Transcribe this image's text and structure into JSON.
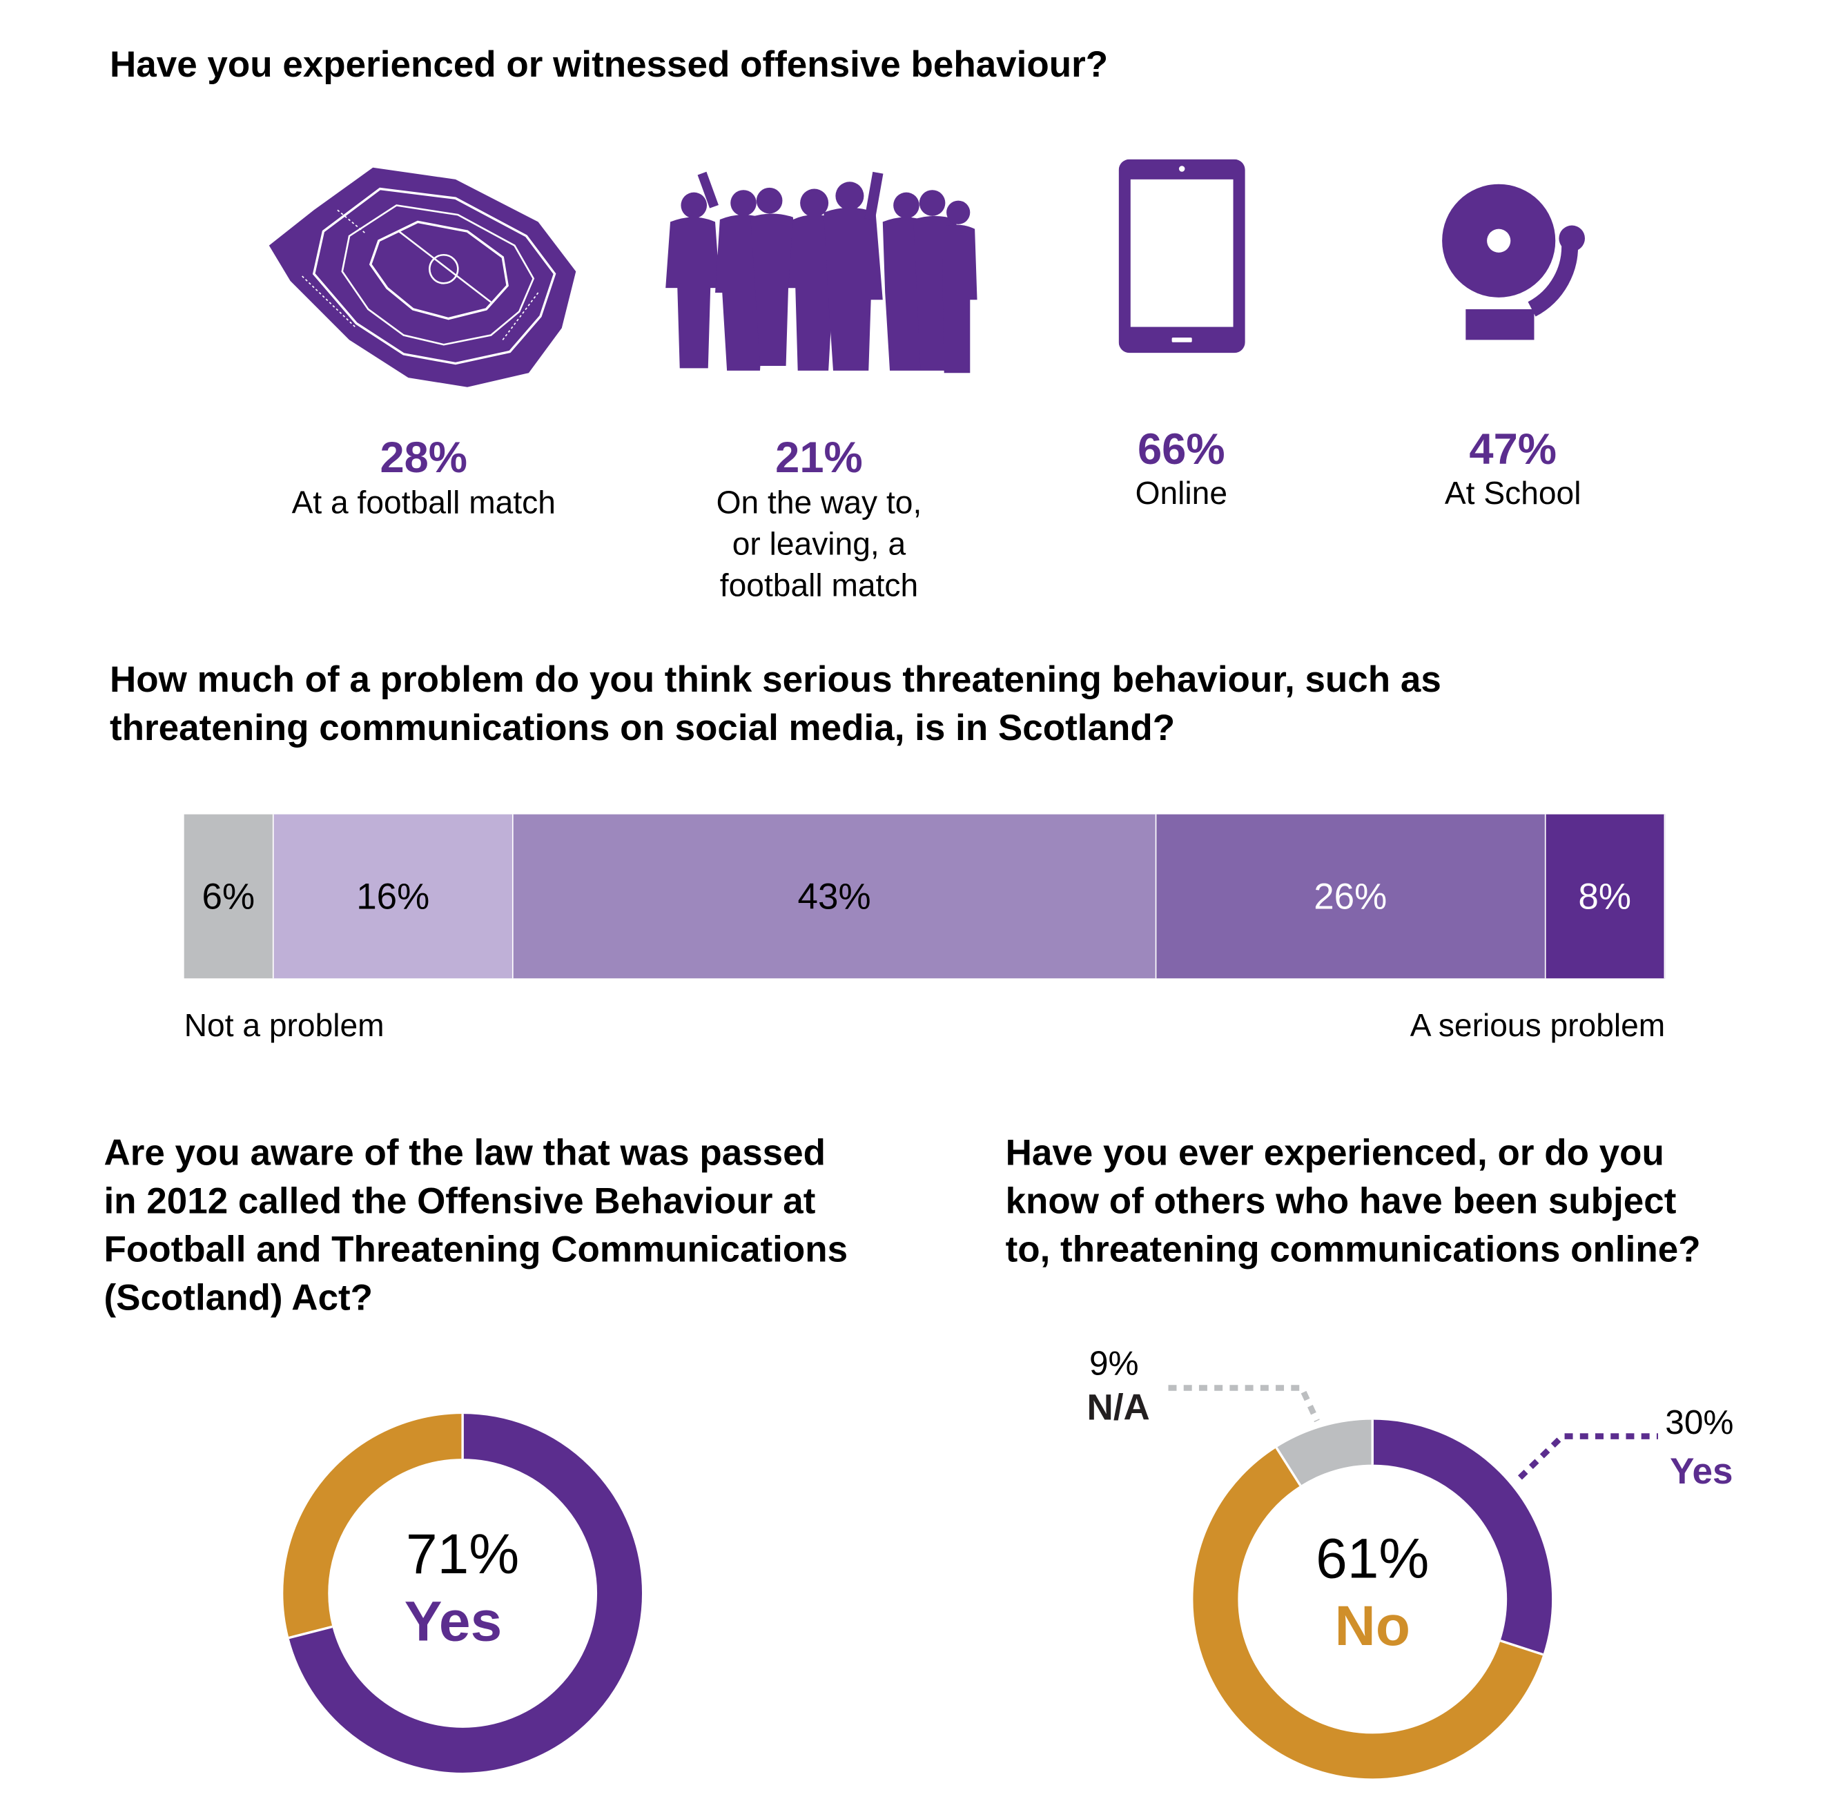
{
  "colors": {
    "purple": "#5b2d8e",
    "gold": "#d08f2a",
    "gray": "#bcbec0",
    "scale": [
      "#bcbec0",
      "#bfb0d7",
      "#9d88bd",
      "#8266aa",
      "#5b2d8e"
    ]
  },
  "section1": {
    "title": "Have you experienced or witnessed offensive behaviour?",
    "items": [
      {
        "icon": "stadium-icon",
        "value": "28%",
        "label_lines": [
          "At a football match"
        ]
      },
      {
        "icon": "crowd-icon",
        "value": "21%",
        "label_lines": [
          "On the way to,",
          "or leaving, a",
          "football match"
        ]
      },
      {
        "icon": "tablet-icon",
        "value": "66%",
        "label_lines": [
          "Online"
        ]
      },
      {
        "icon": "school-bell-icon",
        "value": "47%",
        "label_lines": [
          "At School"
        ]
      }
    ]
  },
  "section2": {
    "title_lines": [
      "How much of a problem do you think serious threatening behaviour, such as",
      "threatening communications on social media, is in Scotland?"
    ]
  },
  "section3": {
    "title_lines": [
      "Are you aware of the law that was passed",
      "in 2012 called the Offensive Behaviour at",
      "Football and Threatening Communications",
      "(Scotland) Act?"
    ]
  },
  "section4": {
    "title_lines": [
      "Have you ever experienced, or do you",
      "know of others who have been subject",
      "to, threatening communications online?"
    ]
  },
  "chart_data": [
    {
      "type": "bar",
      "stacked": true,
      "orientation": "horizontal",
      "values": [
        6,
        16,
        43,
        26,
        8
      ],
      "data_labels": [
        "6%",
        "16%",
        "43%",
        "26%",
        "8%"
      ],
      "colors": [
        "#bcbec0",
        "#bfb0d7",
        "#9d88bd",
        "#8266aa",
        "#5b2d8e"
      ],
      "label_colors": [
        "#000000",
        "#000000",
        "#000000",
        "#ffffff",
        "#ffffff"
      ],
      "scale_left_label": "Not a problem",
      "scale_right_label": "A serious problem"
    },
    {
      "type": "pie",
      "donut": true,
      "slices": [
        {
          "label": "Yes",
          "value": 71,
          "color": "#5b2d8e"
        },
        {
          "label": "No",
          "value": 29,
          "color": "#d08f2a"
        }
      ],
      "center_value": "71%",
      "center_label": "Yes"
    },
    {
      "type": "pie",
      "donut": true,
      "slices": [
        {
          "label": "Yes",
          "value": 30,
          "color": "#5b2d8e"
        },
        {
          "label": "No",
          "value": 61,
          "color": "#d08f2a"
        },
        {
          "label": "N/A",
          "value": 9,
          "color": "#bcbec0"
        }
      ],
      "center_value": "61%",
      "center_label": "No",
      "callouts": [
        {
          "value": "30%",
          "label": "Yes"
        },
        {
          "value": "9%",
          "label": "N/A"
        }
      ]
    }
  ]
}
